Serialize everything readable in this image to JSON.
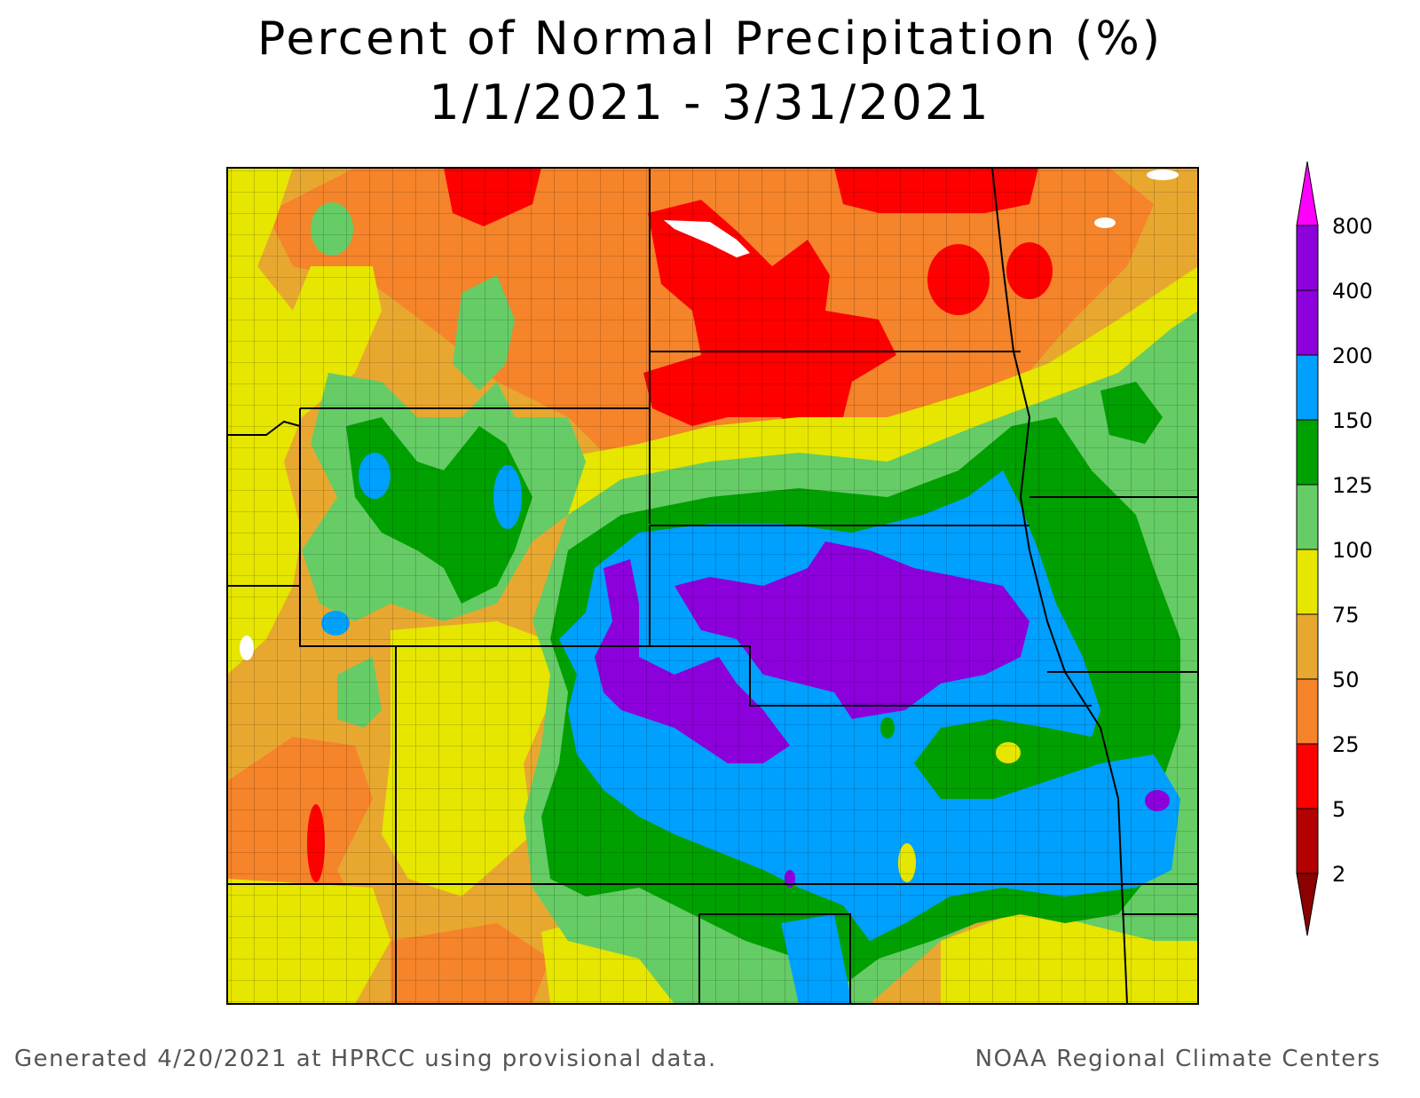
{
  "title": {
    "line1": "Percent of Normal Precipitation (%)",
    "line2": "1/1/2021 - 3/31/2021"
  },
  "footer": {
    "left": "Generated 4/20/2021 at HPRCC using provisional data.",
    "right": "NOAA Regional Climate Centers"
  },
  "legend": {
    "levels": [
      {
        "label": "2",
        "color": "#8b0000"
      },
      {
        "label": "5",
        "color": "#b30000"
      },
      {
        "label": "25",
        "color": "#ff0000"
      },
      {
        "label": "50",
        "color": "#f5842a"
      },
      {
        "label": "75",
        "color": "#e8a830"
      },
      {
        "label": "100",
        "color": "#e6e600"
      },
      {
        "label": "125",
        "color": "#66cc66"
      },
      {
        "label": "150",
        "color": "#00a000"
      },
      {
        "label": "200",
        "color": "#00a0ff"
      },
      {
        "label": "400",
        "color": "#8c00dc"
      },
      {
        "label": "800",
        "color": "#8c00dc"
      }
    ],
    "top_color": "#ff00ff"
  },
  "colors": {
    "lt5": "#b30000",
    "5-25": "#ff0000",
    "25-50": "#f5842a",
    "50-75": "#e8a830",
    "75-100": "#e6e600",
    "100-125": "#66cc66",
    "125-150": "#00a000",
    "150-200": "#00a0ff",
    "200-400": "#8c00dc",
    "water": "#ffffff"
  }
}
